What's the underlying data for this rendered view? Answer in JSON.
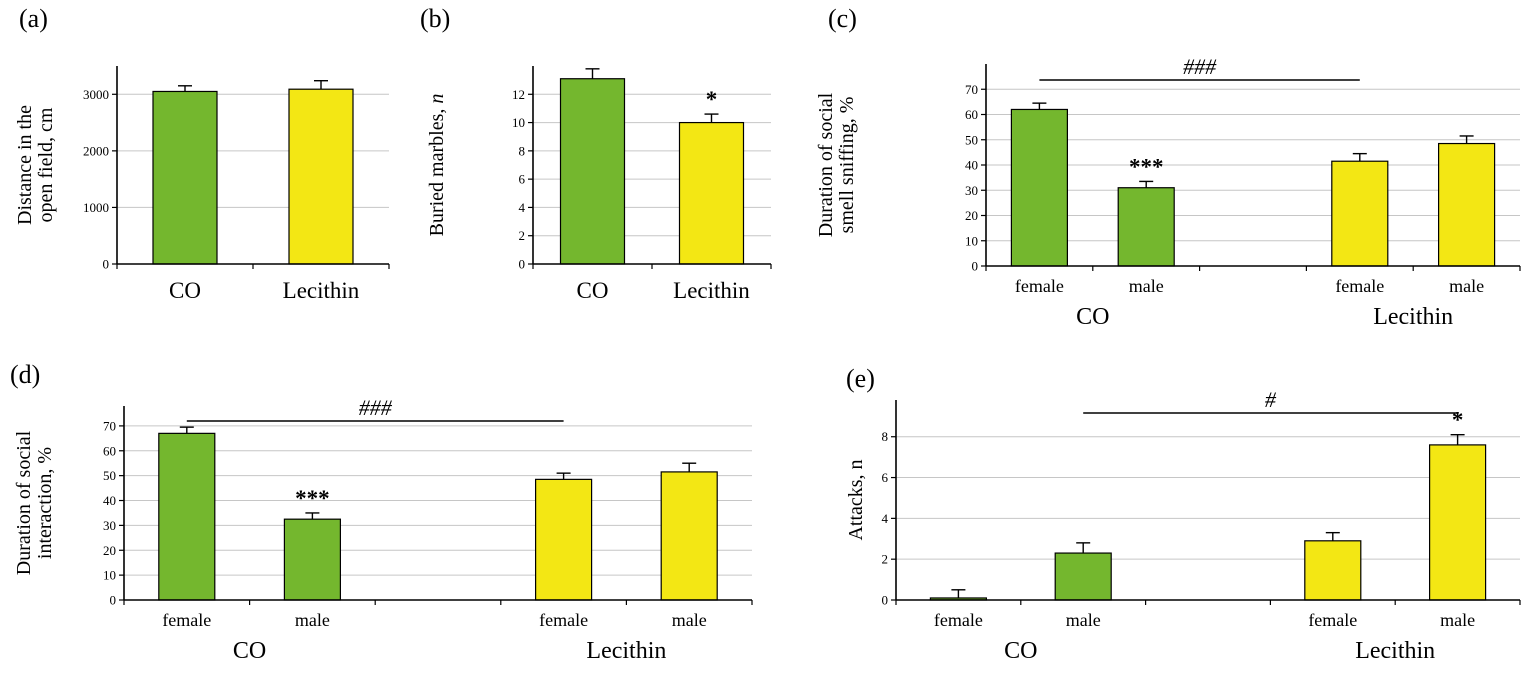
{
  "colors": {
    "co": "#74b72e",
    "lecithin": "#f3e714",
    "bar_border": "#000000",
    "grid": "#c6c6c6",
    "axis": "#000000"
  },
  "chart_data": [
    {
      "type": "bar",
      "panel": "a",
      "letter": "(a)",
      "title": "",
      "ylabel": "Distance in the open field, cm",
      "ylabel_lines": [
        "Distance in the",
        "open field, cm"
      ],
      "categories": [
        "CO",
        "Lecithin"
      ],
      "values": [
        3050,
        3090
      ],
      "errors": [
        100,
        150
      ],
      "bar_colors": [
        "co",
        "lecithin"
      ],
      "annotations": [
        "",
        ""
      ],
      "ylim": [
        0,
        3500
      ],
      "yticks": [
        0,
        1000,
        2000,
        3000
      ],
      "grid": true,
      "groups": [],
      "sig": null
    },
    {
      "type": "bar",
      "panel": "b",
      "letter": "(b)",
      "title": "",
      "ylabel": "Buried marbles, n",
      "ylabel_lines": [
        "Buried marbles, n"
      ],
      "ylabel_italic_tail": 1,
      "categories": [
        "CO",
        "Lecithin"
      ],
      "values": [
        13.1,
        10
      ],
      "errors": [
        0.7,
        0.6
      ],
      "bar_colors": [
        "co",
        "lecithin"
      ],
      "annotations": [
        "",
        "*"
      ],
      "ylim": [
        0,
        14
      ],
      "yticks": [
        0,
        2,
        4,
        6,
        8,
        10,
        12
      ],
      "grid": true,
      "groups": [],
      "sig": null
    },
    {
      "type": "bar",
      "panel": "c",
      "letter": "(c)",
      "title": "",
      "ylabel": "Duration of social smell sniffing, %",
      "ylabel_lines": [
        "Duration of social",
        "smell sniffing, %"
      ],
      "categories": [
        "female",
        "male",
        "female",
        "male"
      ],
      "values": [
        62,
        31,
        41.5,
        48.5
      ],
      "errors": [
        2.5,
        2.5,
        3,
        3
      ],
      "bar_colors": [
        "co",
        "co",
        "lecithin",
        "lecithin"
      ],
      "annotations": [
        "",
        "***",
        "",
        ""
      ],
      "ylim": [
        0,
        80
      ],
      "yticks": [
        0,
        10,
        20,
        30,
        40,
        50,
        60,
        70
      ],
      "grid": true,
      "groups": [
        {
          "label": "CO",
          "bars": [
            0,
            1
          ]
        },
        {
          "label": "Lecithin",
          "bars": [
            2,
            3
          ]
        }
      ],
      "sig": {
        "text": "###",
        "from": 0,
        "to": 2
      }
    },
    {
      "type": "bar",
      "panel": "d",
      "letter": "(d)",
      "title": "",
      "ylabel": "Duration of social interaction, %",
      "ylabel_lines": [
        "Duration of social",
        "interaction, %"
      ],
      "categories": [
        "female",
        "male",
        "female",
        "male"
      ],
      "values": [
        67,
        32.5,
        48.5,
        51.5
      ],
      "errors": [
        2.5,
        2.5,
        2.5,
        3.5
      ],
      "bar_colors": [
        "co",
        "co",
        "lecithin",
        "lecithin"
      ],
      "annotations": [
        "",
        "***",
        "",
        ""
      ],
      "ylim": [
        0,
        78
      ],
      "yticks": [
        0,
        10,
        20,
        30,
        40,
        50,
        60,
        70
      ],
      "grid": true,
      "groups": [
        {
          "label": "CO",
          "bars": [
            0,
            1
          ]
        },
        {
          "label": "Lecithin",
          "bars": [
            2,
            3
          ]
        }
      ],
      "sig": {
        "text": "###",
        "from": 0,
        "to": 2
      }
    },
    {
      "type": "bar",
      "panel": "e",
      "letter": "(e)",
      "title": "",
      "ylabel": "Attacks, n",
      "ylabel_lines": [
        "Attacks, n"
      ],
      "categories": [
        "female",
        "male",
        "female",
        "male"
      ],
      "values": [
        0.1,
        2.3,
        2.9,
        7.6
      ],
      "errors": [
        0.4,
        0.5,
        0.4,
        0.5
      ],
      "bar_colors": [
        "co",
        "co",
        "lecithin",
        "lecithin"
      ],
      "annotations": [
        "",
        "",
        "",
        "*"
      ],
      "ylim": [
        0,
        9.8
      ],
      "yticks": [
        0,
        2,
        4,
        6,
        8
      ],
      "grid": true,
      "groups": [
        {
          "label": "CO",
          "bars": [
            0,
            1
          ]
        },
        {
          "label": "Lecithin",
          "bars": [
            2,
            3
          ]
        }
      ],
      "sig": {
        "text": "#",
        "from": 1,
        "to": 3
      }
    }
  ]
}
